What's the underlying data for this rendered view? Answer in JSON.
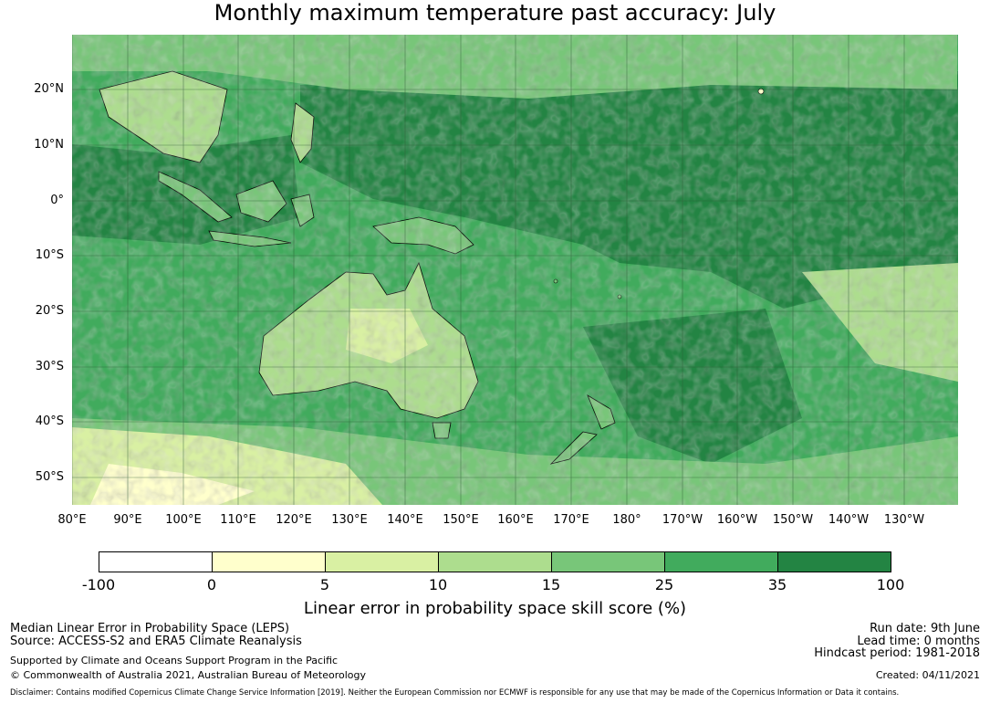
{
  "title": "Monthly maximum temperature past accuracy: July",
  "map": {
    "lat_ticks": [
      "20°N",
      "10°N",
      "0°",
      "10°S",
      "20°S",
      "30°S",
      "40°S",
      "50°S"
    ],
    "lon_ticks": [
      "80°E",
      "90°E",
      "100°E",
      "110°E",
      "120°E",
      "130°E",
      "140°E",
      "150°E",
      "160°E",
      "170°E",
      "180°",
      "170°W",
      "160°W",
      "150°W",
      "140°W",
      "130°W"
    ]
  },
  "colorbar": {
    "ticks": [
      "-100",
      "0",
      "5",
      "10",
      "15",
      "25",
      "35",
      "100"
    ],
    "colors": [
      "#ffffff",
      "#ffffcc",
      "#d9f0a3",
      "#addd8e",
      "#78c679",
      "#41ab5d",
      "#238443"
    ],
    "label": "Linear error in probability space skill score (%)"
  },
  "info": {
    "left_line1": "Median Linear Error in Probability Space (LEPS)",
    "left_line2": "Source: ACCESS-S2 and ERA5 Climate Reanalysis",
    "left_line3": "Supported by Climate and Oceans Support Program in the Pacific",
    "left_line4": "© Commonwealth of Australia 2021, Australian Bureau of Meteorology",
    "run_date": "Run date: 9th June",
    "lead_time": "Lead time: 0 months",
    "hindcast": "Hindcast period: 1981-2018",
    "created": "Created: 04/11/2021",
    "disclaimer": "Disclaimer: Contains modified Copernicus Climate Change Service Information [2019]. Neither the European Commission nor ECMWF is responsible for any use that may be made of the Copernicus Information or Data it contains."
  }
}
